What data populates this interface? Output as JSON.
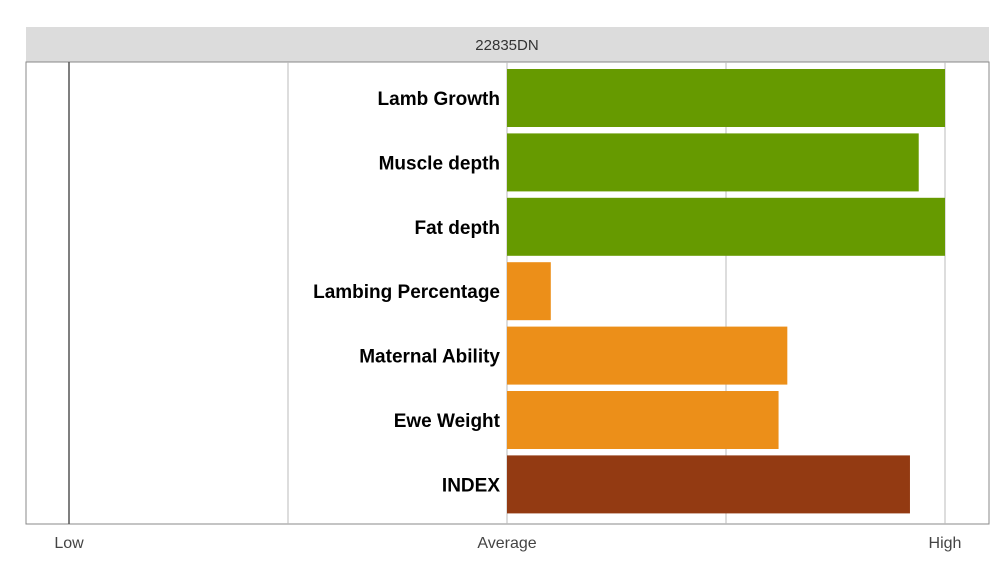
{
  "chart_data": {
    "type": "bar",
    "orientation": "horizontal",
    "title": "22835DN",
    "categories": [
      "Lamb Growth",
      "Muscle depth",
      "Fat depth",
      "Lambing Percentage",
      "Maternal Ability",
      "Ewe Weight",
      "INDEX"
    ],
    "values": [
      1.0,
      0.94,
      1.0,
      0.1,
      0.64,
      0.62,
      0.92
    ],
    "colors": [
      "#669a00",
      "#669a00",
      "#669a00",
      "#ec8f19",
      "#ec8f19",
      "#ec8f19",
      "#933a12"
    ],
    "xlim": [
      -1,
      1
    ],
    "x_ticks": [
      {
        "value": -1,
        "label": "Low"
      },
      {
        "value": 0,
        "label": "Average"
      },
      {
        "value": 1,
        "label": "High"
      }
    ],
    "grid": true,
    "legend": "none"
  }
}
